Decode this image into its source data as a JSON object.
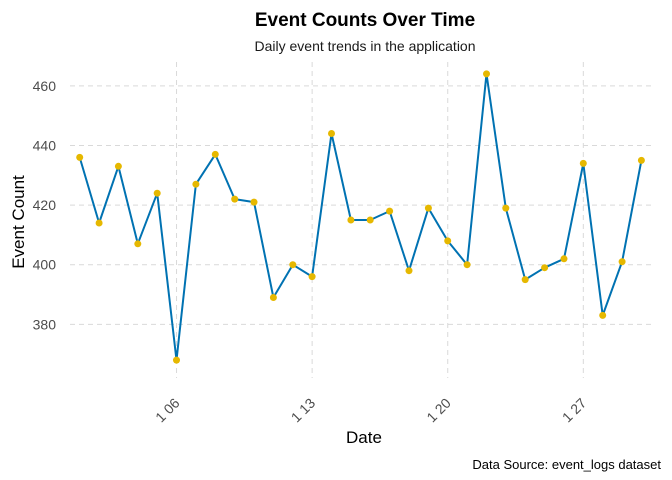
{
  "chart_data": {
    "type": "line",
    "title": "Event Counts Over Time",
    "subtitle": "Daily event trends in the application",
    "xlabel": "Date",
    "ylabel": "Event Count",
    "caption": "Data Source: event_logs dataset",
    "x_ticks": [
      "1 06",
      "1 13",
      "1 20",
      "1 27"
    ],
    "x_tick_days": [
      6,
      13,
      20,
      27
    ],
    "xlim": [
      0.5,
      30.7
    ],
    "y_ticks": [
      380,
      400,
      420,
      440,
      460
    ],
    "ylim": [
      362,
      468
    ],
    "grid": true,
    "legend": "none",
    "x_days": [
      1,
      2,
      3,
      4,
      5,
      6,
      7,
      8,
      9,
      10,
      11,
      12,
      13,
      14,
      15,
      16,
      17,
      18,
      19,
      20,
      21,
      22,
      23,
      24,
      25,
      26,
      27,
      28,
      29,
      30
    ],
    "series": [
      {
        "values": [
          436,
          414,
          433,
          407,
          424,
          368,
          427,
          437,
          422,
          421,
          389,
          400,
          396,
          444,
          415,
          415,
          418,
          398,
          419,
          408,
          400,
          464,
          419,
          395,
          399,
          402,
          434,
          383,
          401,
          435
        ]
      }
    ],
    "colors": {
      "line": "#0072B2",
      "points": "#E6B800",
      "grid": "#d9d9d9"
    }
  }
}
